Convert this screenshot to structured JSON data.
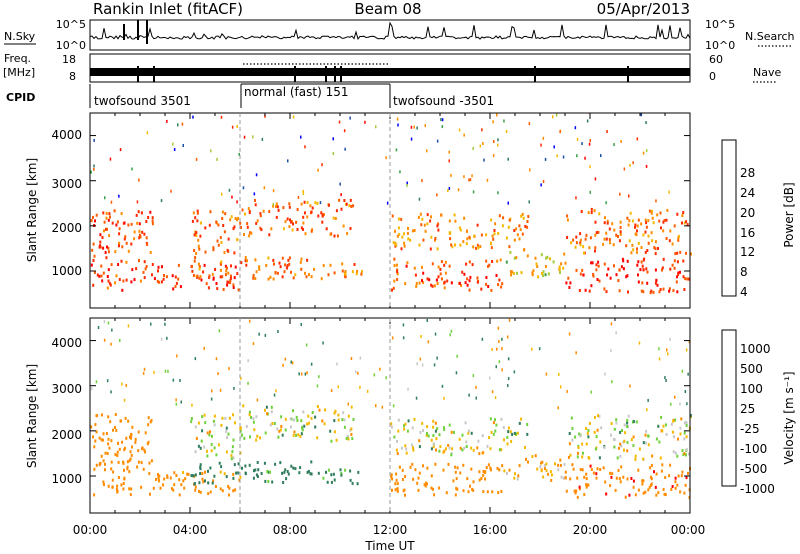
{
  "header": {
    "station": "Rankin Inlet (fitACF)",
    "beam": "Beam 08",
    "date": "05/Apr/2013"
  },
  "noise_panel": {
    "left_label": "N.Sky",
    "left_ticks": [
      "10^5",
      "10^0"
    ],
    "right_ticks": [
      "10^5",
      "10^0"
    ],
    "right_label": "N.Search"
  },
  "freq_panel": {
    "left_label_1": "Freq.",
    "left_label_2": "[MHz]",
    "left_ticks": [
      "18",
      "8"
    ],
    "right_ticks": [
      "60",
      "0"
    ],
    "right_label": "Nave"
  },
  "cpid": {
    "label": "CPID",
    "segments": [
      {
        "label": "twofsound 3501",
        "start_h": 0,
        "end_h": 6
      },
      {
        "label": "normal (fast) 151",
        "start_h": 6,
        "end_h": 12
      },
      {
        "label": "twofsound -3501",
        "start_h": 12,
        "end_h": 24
      }
    ]
  },
  "x_axis": {
    "label": "Time UT",
    "ticks": [
      "00:00",
      "04:00",
      "08:00",
      "12:00",
      "16:00",
      "20:00",
      "00:00"
    ],
    "range_hours": [
      0,
      24
    ]
  },
  "power_panel": {
    "ylabel": "Slant Range [km]",
    "yticks": [
      "1000",
      "2000",
      "3000",
      "4000"
    ],
    "colorbar_label": "Power [dB]",
    "colorbar_ticks": [
      "28",
      "24",
      "20",
      "16",
      "12",
      "8",
      "4"
    ],
    "colors": [
      "#0000ff",
      "#1a4fa6",
      "#2e7d5b",
      "#3aa048",
      "#a4c939",
      "#f5b800",
      "#ff8c00",
      "#ff5a00",
      "#ff2a00",
      "#ff0000"
    ]
  },
  "velocity_panel": {
    "ylabel": "Slant Range [km]",
    "yticks": [
      "1000",
      "2000",
      "3000",
      "4000"
    ],
    "colorbar_label": "Velocity [m s⁻¹]",
    "colorbar_ticks": [
      "1000",
      "500",
      "100",
      "25",
      "-25",
      "-100",
      "-500",
      "-1000"
    ],
    "colors": [
      "#1a3fb0",
      "#2b57c4",
      "#2e7d5b",
      "#3aa048",
      "#6fd13c",
      "#c8c8c8",
      "#f5b800",
      "#ff8c00",
      "#ff5a00",
      "#ff0000"
    ]
  },
  "chart_data": {
    "type": "heatmap",
    "x_unit": "hours UT",
    "y_unit": "km",
    "ylim": [
      180,
      4500
    ],
    "xlim": [
      0,
      24
    ],
    "power_db_range": [
      0,
      30
    ],
    "velocity_range": [
      -1000,
      1000
    ],
    "scatter_regions": [
      {
        "t0": 0.0,
        "t1": 2.5,
        "r0": 600,
        "r1": 2400,
        "power": 24,
        "velocity": -300
      },
      {
        "t0": 2.5,
        "t1": 6.0,
        "r0": 600,
        "r1": 1200,
        "power": 26,
        "velocity": -200
      },
      {
        "t0": 4.0,
        "t1": 6.0,
        "r0": 1400,
        "r1": 2400,
        "power": 22,
        "velocity": 0
      },
      {
        "t0": 4.0,
        "t1": 9.0,
        "r0": 850,
        "r1": 1350,
        "power": 22,
        "velocity": 200
      },
      {
        "t0": 6.0,
        "t1": 10.5,
        "r0": 1800,
        "r1": 2600,
        "power": 22,
        "velocity": 0
      },
      {
        "t0": 9.0,
        "t1": 11.0,
        "r0": 850,
        "r1": 1200,
        "power": 20,
        "velocity": 150
      },
      {
        "t0": 12.0,
        "t1": 16.5,
        "r0": 600,
        "r1": 1300,
        "power": 24,
        "velocity": -300
      },
      {
        "t0": 12.0,
        "t1": 17.5,
        "r0": 1500,
        "r1": 2300,
        "power": 20,
        "velocity": 0
      },
      {
        "t0": 16.5,
        "t1": 19.0,
        "r0": 900,
        "r1": 1500,
        "power": 16,
        "velocity": -100
      },
      {
        "t0": 19.0,
        "t1": 24.0,
        "r0": 550,
        "r1": 1300,
        "power": 26,
        "velocity": -400
      },
      {
        "t0": 19.0,
        "t1": 24.0,
        "r0": 1400,
        "r1": 2400,
        "power": 22,
        "velocity": 0
      }
    ]
  }
}
